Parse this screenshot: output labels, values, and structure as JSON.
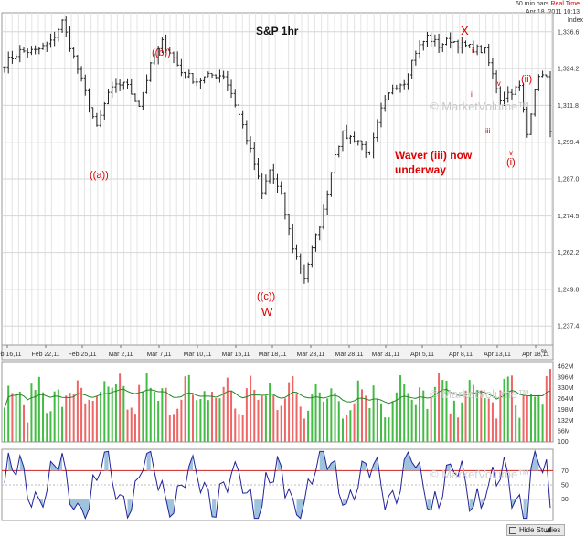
{
  "header": {
    "bars_label": "60 min bars",
    "realtime_label": "Real Time",
    "timestamp": "Apr 18, 2011 10:13",
    "index_label": "Index"
  },
  "chart_data": [
    {
      "type": "ohlc",
      "title": "S&P 1hr",
      "watermark": "© MarketVolume™",
      "y_ticks": [
        "1,336.6",
        "1,324.2",
        "1,311.8",
        "1,299.4",
        "1,287.0",
        "1,274.5",
        "1,262.2",
        "1,249.8",
        "1,237.4"
      ],
      "ylim": [
        1231,
        1343
      ],
      "x_ticks": [
        "Feb 16,11",
        "Feb 22,11",
        "Feb 25,11",
        "Mar 2,11",
        "Mar 7,11",
        "Mar 10,11",
        "Mar 15,11",
        "Mar 18,11",
        "Mar 23,11",
        "Mar 28,11",
        "Mar 31,11",
        "Apr 5,11",
        "Apr 8,11",
        "Apr 13,11",
        "Apr 18,11"
      ],
      "close_anchors": [
        [
          0,
          1326
        ],
        [
          4,
          1330
        ],
        [
          8,
          1330
        ],
        [
          12,
          1333
        ],
        [
          15,
          1340
        ],
        [
          18,
          1328
        ],
        [
          21,
          1316
        ],
        [
          24,
          1304
        ],
        [
          27,
          1316
        ],
        [
          31,
          1320
        ],
        [
          35,
          1312
        ],
        [
          38,
          1325
        ],
        [
          41,
          1333
        ],
        [
          43,
          1330
        ],
        [
          46,
          1323
        ],
        [
          50,
          1320
        ],
        [
          54,
          1322
        ],
        [
          57,
          1322
        ],
        [
          59,
          1316
        ],
        [
          62,
          1305
        ],
        [
          65,
          1292
        ],
        [
          67,
          1282
        ],
        [
          69,
          1290
        ],
        [
          72,
          1281
        ],
        [
          75,
          1264
        ],
        [
          78,
          1254
        ],
        [
          80,
          1263
        ],
        [
          83,
          1276
        ],
        [
          86,
          1296
        ],
        [
          88,
          1302
        ],
        [
          92,
          1300
        ],
        [
          95,
          1295
        ],
        [
          98,
          1310
        ],
        [
          101,
          1318
        ],
        [
          104,
          1320
        ],
        [
          107,
          1330
        ],
        [
          110,
          1335
        ],
        [
          113,
          1332
        ],
        [
          116,
          1334
        ],
        [
          119,
          1332
        ],
        [
          122,
          1331
        ],
        [
          125,
          1330
        ],
        [
          127,
          1322
        ],
        [
          129,
          1314
        ],
        [
          131,
          1316
        ],
        [
          134,
          1318
        ],
        [
          136,
          1302
        ],
        [
          138,
          1318
        ],
        [
          140,
          1323
        ],
        [
          141,
          1321
        ],
        [
          142,
          1302
        ]
      ],
      "wave_labels": [
        "X",
        "ii",
        "((b))",
        "(ii)",
        "iv",
        "i",
        "iii",
        "v",
        "(i)",
        "((a))",
        "((c))",
        "W"
      ],
      "annotation": [
        "Waver (iii) now",
        "underway"
      ]
    },
    {
      "type": "bar",
      "title": "",
      "watermark": "© MarketVolume™",
      "y_ticks": [
        "462M",
        "396M",
        "330M",
        "264M",
        "198M",
        "132M",
        "66M"
      ],
      "ylim": [
        0,
        490
      ],
      "up_color": "#44bb44",
      "down_color": "#ee6666",
      "avg_color": "#228822"
    },
    {
      "type": "line",
      "title": "",
      "watermark": "© MarketVolume™",
      "y_ticks": [
        "70",
        "50",
        "30"
      ],
      "ylim": [
        0,
        100
      ],
      "levels": [
        70,
        30
      ],
      "level_color": "#cc2222",
      "line_color": "#22229a",
      "fill_color": "#9ec3dd"
    }
  ],
  "footer": {
    "hide_studies_label": "Hide Studies"
  }
}
